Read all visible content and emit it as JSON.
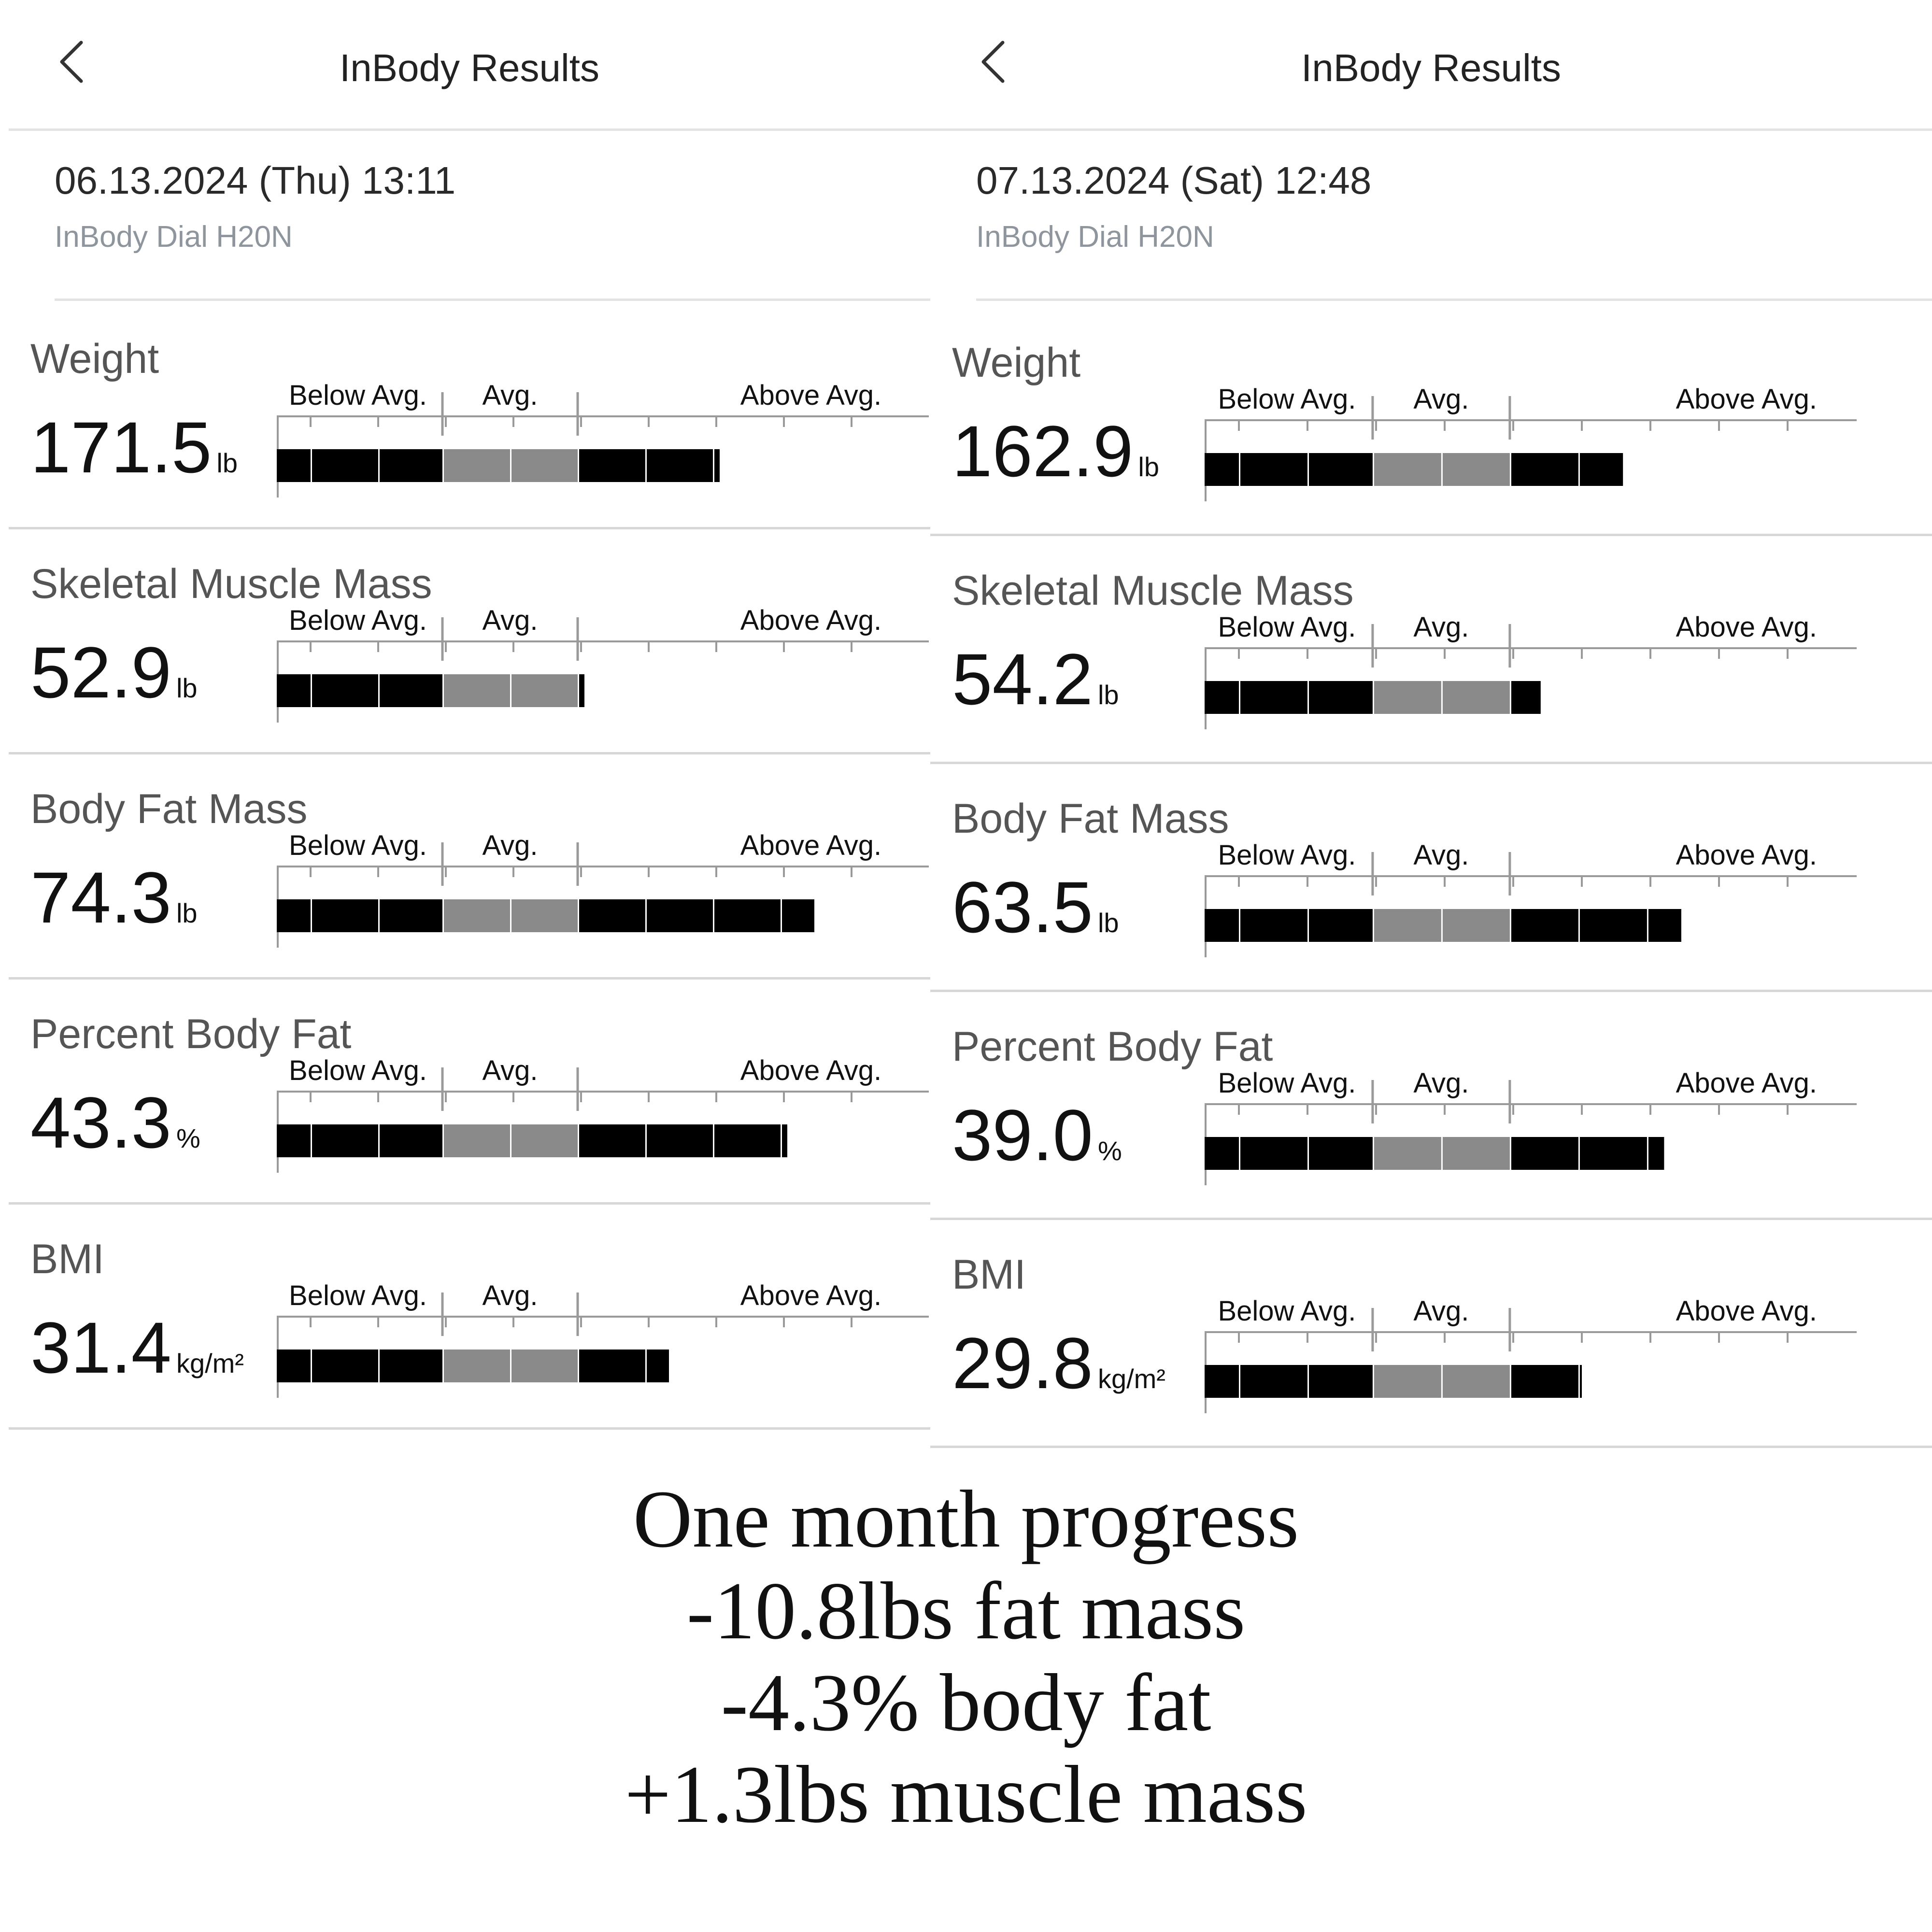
{
  "panels": [
    {
      "header": {
        "back_icon": "chevron-left-icon",
        "title": "InBody Results"
      },
      "datetime": "06.13.2024 (Thu) 13:11",
      "device": "InBody Dial H20N",
      "metrics": [
        {
          "name": "Weight",
          "value": "171.5",
          "unit": "lb",
          "level": 6.55
        },
        {
          "name": "Skeletal Muscle Mass",
          "value": "52.9",
          "unit": "lb",
          "level": 4.55
        },
        {
          "name": "Body Fat Mass",
          "value": "74.3",
          "unit": "lb",
          "level": 7.95
        },
        {
          "name": "Percent Body Fat",
          "value": "43.3",
          "unit": "%",
          "level": 7.55
        },
        {
          "name": "BMI",
          "value": "31.4",
          "unit": "kg/m²",
          "level": 5.8
        }
      ]
    },
    {
      "header": {
        "back_icon": "chevron-left-icon",
        "title": "InBody Results"
      },
      "datetime": "07.13.2024 (Sat) 12:48",
      "device": "InBody Dial H20N",
      "metrics": [
        {
          "name": "Weight",
          "value": "162.9",
          "unit": "lb",
          "level": 6.1
        },
        {
          "name": "Skeletal Muscle Mass",
          "value": "54.2",
          "unit": "lb",
          "level": 4.9
        },
        {
          "name": "Body Fat Mass",
          "value": "63.5",
          "unit": "lb",
          "level": 6.95
        },
        {
          "name": "Percent Body Fat",
          "value": "39.0",
          "unit": "%",
          "level": 6.7
        },
        {
          "name": "BMI",
          "value": "29.8",
          "unit": "kg/m²",
          "level": 5.5
        }
      ]
    }
  ],
  "scale_labels": {
    "below": "Below Avg.",
    "avg": "Avg.",
    "above": "Above Avg."
  },
  "colors": {
    "bar_black": "#000000",
    "bar_gray": "#8a8a8a",
    "divider": "#d7d7d7",
    "muted": "#8f959c"
  },
  "caption": [
    "One month progress",
    "-10.8lbs fat mass",
    "-4.3% body fat",
    "+1.3lbs muscle mass"
  ]
}
